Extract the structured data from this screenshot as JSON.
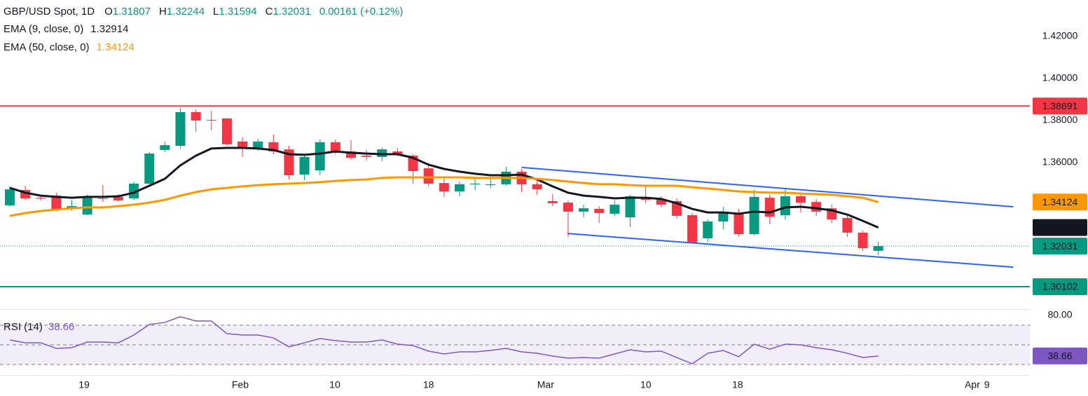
{
  "header": {
    "symbol": "GBP/USD Spot, 1D",
    "ohlc": [
      {
        "label": "O",
        "value": "1.31807"
      },
      {
        "label": "H",
        "value": "1.32244"
      },
      {
        "label": "L",
        "value": "1.31594"
      },
      {
        "label": "C",
        "value": "1.32031"
      }
    ],
    "change": "0.00161 (+0.12%)"
  },
  "chart_data": [
    {
      "type": "candlestick",
      "up_color": "#089981",
      "down_color": "#f23645",
      "open": [
        1.3397,
        1.347,
        1.3433,
        1.3443,
        1.3383,
        1.3353,
        1.343,
        1.3437,
        1.343,
        1.35,
        1.366,
        1.368,
        1.384,
        1.3803,
        1.381,
        1.37,
        1.367,
        1.3697,
        1.3663,
        1.3543,
        1.3563,
        1.3697,
        1.3653,
        1.3633,
        1.3627,
        1.3653,
        1.3633,
        1.3573,
        1.3503,
        1.3463,
        1.3497,
        1.3493,
        1.3497,
        1.3557,
        1.3497,
        1.3417,
        1.341,
        1.3367,
        1.338,
        1.3357,
        1.334,
        1.3433,
        1.3427,
        1.3417,
        1.335,
        1.324,
        1.332,
        1.336,
        1.326,
        1.3433,
        1.335,
        1.344,
        1.3413,
        1.3383,
        1.3337,
        1.3267,
        1.31807
      ],
      "high": [
        1.3487,
        1.349,
        1.3447,
        1.3457,
        1.3423,
        1.3447,
        1.3493,
        1.345,
        1.351,
        1.365,
        1.37,
        1.386,
        1.3853,
        1.3847,
        1.3813,
        1.372,
        1.3713,
        1.3733,
        1.368,
        1.364,
        1.371,
        1.371,
        1.3707,
        1.366,
        1.3673,
        1.367,
        1.364,
        1.36,
        1.3523,
        1.351,
        1.353,
        1.3527,
        1.358,
        1.357,
        1.3513,
        1.345,
        1.342,
        1.34,
        1.3393,
        1.342,
        1.3447,
        1.3487,
        1.344,
        1.343,
        1.336,
        1.333,
        1.339,
        1.338,
        1.347,
        1.3447,
        1.348,
        1.3453,
        1.3427,
        1.34,
        1.335,
        1.3277,
        1.32244
      ],
      "low": [
        1.339,
        1.3423,
        1.342,
        1.337,
        1.3373,
        1.335,
        1.3413,
        1.3413,
        1.342,
        1.3497,
        1.365,
        1.3667,
        1.3747,
        1.3753,
        1.368,
        1.3627,
        1.3657,
        1.364,
        1.352,
        1.3517,
        1.354,
        1.364,
        1.3613,
        1.361,
        1.3607,
        1.363,
        1.35,
        1.3487,
        1.3437,
        1.344,
        1.347,
        1.348,
        1.349,
        1.346,
        1.3447,
        1.3393,
        1.3247,
        1.334,
        1.3313,
        1.3347,
        1.3293,
        1.3407,
        1.3387,
        1.3333,
        1.3217,
        1.3223,
        1.3283,
        1.325,
        1.3253,
        1.3307,
        1.333,
        1.3363,
        1.3347,
        1.3313,
        1.3247,
        1.318,
        1.31594
      ],
      "close": [
        1.3473,
        1.343,
        1.343,
        1.338,
        1.3393,
        1.3433,
        1.3427,
        1.342,
        1.35,
        1.3643,
        1.3683,
        1.384,
        1.38,
        1.38,
        1.3687,
        1.3667,
        1.37,
        1.3653,
        1.354,
        1.3627,
        1.3697,
        1.3647,
        1.3623,
        1.3627,
        1.3663,
        1.3637,
        1.356,
        1.35,
        1.3463,
        1.3497,
        1.35,
        1.3497,
        1.3557,
        1.3497,
        1.3473,
        1.3407,
        1.3367,
        1.3383,
        1.336,
        1.34,
        1.344,
        1.3423,
        1.34,
        1.3347,
        1.322,
        1.332,
        1.3367,
        1.326,
        1.3437,
        1.3343,
        1.344,
        1.341,
        1.3367,
        1.333,
        1.3267,
        1.3193,
        1.32031
      ],
      "last_label": "1.32031",
      "overlays": [
        {
          "name": "EMA (9, close, 0)",
          "value_label": "1.32914",
          "color": "#131722",
          "values": [
            1.348,
            1.3457,
            1.3443,
            1.3437,
            1.3433,
            1.3437,
            1.3437,
            1.344,
            1.3457,
            1.349,
            1.3523,
            1.3587,
            1.3633,
            1.3667,
            1.367,
            1.367,
            1.3667,
            1.366,
            1.364,
            1.3637,
            1.3643,
            1.3653,
            1.3647,
            1.3643,
            1.364,
            1.364,
            1.3623,
            1.359,
            1.357,
            1.3557,
            1.3547,
            1.354,
            1.354,
            1.3543,
            1.352,
            1.3487,
            1.3457,
            1.3443,
            1.3437,
            1.343,
            1.3433,
            1.3433,
            1.3427,
            1.3407,
            1.338,
            1.3363,
            1.3363,
            1.3357,
            1.3367,
            1.3363,
            1.3387,
            1.339,
            1.3383,
            1.3373,
            1.3353,
            1.3323,
            1.32914
          ]
        },
        {
          "name": "EMA (50, close, 0)",
          "value_label": "1.34124",
          "color": "#ff9800",
          "values": [
            1.3347,
            1.336,
            1.337,
            1.3377,
            1.3383,
            1.3387,
            1.3387,
            1.3393,
            1.34,
            1.341,
            1.3423,
            1.3443,
            1.346,
            1.3473,
            1.348,
            1.3487,
            1.3493,
            1.3497,
            1.35,
            1.3503,
            1.3507,
            1.3513,
            1.3517,
            1.352,
            1.3527,
            1.353,
            1.353,
            1.353,
            1.353,
            1.353,
            1.3527,
            1.3527,
            1.3527,
            1.3527,
            1.3523,
            1.3517,
            1.351,
            1.3503,
            1.3497,
            1.3497,
            1.3493,
            1.349,
            1.349,
            1.349,
            1.3483,
            1.3477,
            1.347,
            1.3463,
            1.346,
            1.3457,
            1.3457,
            1.3453,
            1.345,
            1.3447,
            1.344,
            1.3433,
            1.34124
          ]
        }
      ],
      "hlines": [
        {
          "value": 1.38691,
          "label": "1.38691",
          "color": "#f23645"
        },
        {
          "value": 1.30102,
          "label": "1.30102",
          "color": "#089981"
        }
      ],
      "channel": {
        "color": "#2962ff",
        "lines": [
          {
            "x": [
              33,
              64.7
            ],
            "y": [
              1.3577,
              1.339
            ]
          },
          {
            "x": [
              35.95,
              64.7
            ],
            "y": [
              1.3263,
              1.3103
            ]
          }
        ]
      },
      "xlim": [
        -0.63,
        65.77
      ],
      "xticks": [
        {
          "value": 4.79,
          "label": "19"
        },
        {
          "value": 14.86,
          "label": "Feb"
        },
        {
          "value": 20.96,
          "label": "10"
        },
        {
          "value": 27.0,
          "label": "18"
        },
        {
          "value": 34.55,
          "label": "Mar"
        },
        {
          "value": 41.01,
          "label": "10"
        },
        {
          "value": 46.93,
          "label": "18"
        },
        {
          "value": 62.06,
          "label": "Apr"
        },
        {
          "value": 63.0,
          "label": "9"
        }
      ],
      "ylim": [
        1.2907,
        1.4373
      ],
      "yticks": [
        {
          "value": 1.42,
          "label": "1.42000"
        },
        {
          "value": 1.4,
          "label": "1.40000"
        },
        {
          "value": 1.38,
          "label": "1.38000"
        },
        {
          "value": 1.36,
          "label": "1.36000"
        }
      ]
    },
    {
      "type": "line",
      "name": "RSI (14)",
      "value_label": "38.66",
      "color": "#7e57c2",
      "values": [
        55.0,
        52.1,
        52.1,
        46.4,
        47.1,
        52.9,
        52.9,
        52.1,
        60.0,
        70.7,
        72.9,
        78.6,
        74.3,
        74.3,
        61.4,
        60.0,
        60.0,
        57.1,
        47.9,
        52.1,
        56.4,
        54.3,
        52.9,
        52.9,
        55.0,
        50.7,
        49.3,
        43.6,
        40.7,
        42.9,
        42.9,
        44.3,
        46.4,
        42.9,
        41.4,
        38.6,
        36.4,
        37.1,
        36.4,
        40.7,
        45.0,
        42.9,
        43.6,
        37.1,
        30.7,
        41.4,
        44.3,
        37.9,
        50.7,
        45.7,
        50.7,
        50.0,
        47.1,
        45.0,
        41.4,
        37.1,
        38.66
      ],
      "bands": [
        70,
        50,
        30
      ],
      "ylim": [
        19.3,
        85
      ],
      "yticks": [
        {
          "value": 80,
          "label": "80.00"
        }
      ]
    }
  ]
}
